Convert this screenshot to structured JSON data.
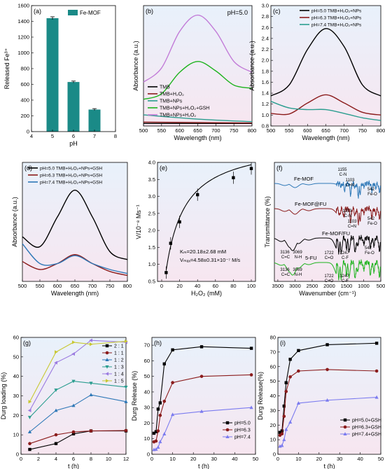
{
  "colors": {
    "teal": "#1a8a87",
    "black": "#000000",
    "dark_red": "#8b1c1c",
    "green_mid": "#2a9d8f",
    "blue": "#2e78b7",
    "green": "#1db31d",
    "violet": "#c27cd8",
    "bg_top": "#e8f1fb",
    "bg_bottom": "#f7e6f0"
  },
  "chart_data": [
    {
      "panel": "(a)",
      "type": "bar",
      "legend": [
        "Fe-MOF"
      ],
      "categories": [
        5,
        6,
        7
      ],
      "values": [
        1440,
        630,
        280
      ],
      "errors": [
        18,
        12,
        12
      ],
      "xlabel": "pH",
      "ylabel": "Released Fe³⁺",
      "xlim": [
        4,
        8
      ],
      "ylim": [
        0,
        1600
      ],
      "xticks": [
        "4",
        "5",
        "6",
        "7",
        "8"
      ],
      "yticks": [
        "0",
        "200",
        "400",
        "600",
        "800",
        "1000",
        "1200",
        "1400",
        "1600"
      ]
    },
    {
      "panel": "(b)",
      "type": "line",
      "annotation": "pH=5.0",
      "xlabel": "Wavelength (nm)",
      "ylabel": "Absorbance (a.u.)",
      "xlim": [
        500,
        800
      ],
      "xticks": [
        "500",
        "550",
        "600",
        "650",
        "700",
        "750",
        "800"
      ],
      "series": [
        {
          "name": "TMB",
          "color": "#000000",
          "x": [
            500,
            650,
            800
          ],
          "y": [
            0.06,
            0.06,
            0.06
          ]
        },
        {
          "name": "TMB+H₂O₂",
          "color": "#8b1c1c",
          "x": [
            500,
            650,
            800
          ],
          "y": [
            0.09,
            0.08,
            0.07
          ]
        },
        {
          "name": "TMB+NPs",
          "color": "#2a9d8f",
          "x": [
            500,
            650,
            800
          ],
          "y": [
            0.26,
            0.16,
            0.1
          ]
        },
        {
          "name": "TMB+NPs+H₂O₂+GSH",
          "color": "#1db31d",
          "x": [
            500,
            550,
            600,
            650,
            700,
            750,
            800
          ],
          "y": [
            0.62,
            0.75,
            1.25,
            1.5,
            1.28,
            0.95,
            0.88
          ]
        },
        {
          "name": "TMB+NPs+H₂O₂",
          "color": "#c27cd8",
          "x": [
            500,
            550,
            600,
            650,
            700,
            750,
            800
          ],
          "y": [
            1.02,
            1.35,
            2.2,
            2.58,
            2.2,
            1.5,
            1.25
          ]
        }
      ]
    },
    {
      "panel": "(c)",
      "type": "line",
      "xlabel": "Wavelength (nm)",
      "ylabel": "Absorbance (a.u.)",
      "xlim": [
        500,
        800
      ],
      "ylim": [
        0.8,
        3.0
      ],
      "xticks": [
        "500",
        "550",
        "600",
        "650",
        "700",
        "750",
        "800"
      ],
      "yticks": [
        "0.8",
        "1.0",
        "1.2",
        "1.4",
        "1.6",
        "1.8",
        "2.0",
        "2.2",
        "2.4",
        "2.6",
        "2.8",
        "3.0"
      ],
      "series": [
        {
          "name": "pH=5.0 TMB+H₂O₂+NPs",
          "color": "#000000",
          "x": [
            500,
            550,
            600,
            650,
            700,
            750,
            800
          ],
          "y": [
            1.35,
            1.55,
            2.2,
            2.58,
            2.25,
            1.55,
            1.35
          ]
        },
        {
          "name": "pH=6.3 TMB+H₂O₂+NPs",
          "color": "#8b1c1c",
          "x": [
            500,
            550,
            600,
            650,
            700,
            750,
            800
          ],
          "y": [
            1.03,
            1.02,
            1.22,
            1.37,
            1.22,
            1.05,
            1.0
          ]
        },
        {
          "name": "pH=7.4 TMB+H₂O₂+NPs",
          "color": "#2a9d8f",
          "x": [
            500,
            550,
            600,
            650,
            700,
            750,
            800
          ],
          "y": [
            1.25,
            1.13,
            1.1,
            1.1,
            1.03,
            0.95,
            0.9
          ]
        }
      ]
    },
    {
      "panel": "(d)",
      "type": "line",
      "xlabel": "Wavelength (nm)",
      "ylabel": "Absorbance (a.u.)",
      "xlim": [
        500,
        800
      ],
      "xticks": [
        "500",
        "550",
        "600",
        "650",
        "700",
        "750",
        "800"
      ],
      "series": [
        {
          "name": "pH=5.0 TMB+H₂O₂+NPs+GSH",
          "color": "#000000",
          "x": [
            500,
            550,
            600,
            650,
            700,
            750,
            800
          ],
          "y": [
            1.05,
            0.95,
            1.25,
            1.52,
            1.25,
            0.9,
            0.82
          ]
        },
        {
          "name": "pH=6.3 TMB+H₂O₂+NPs+GSH",
          "color": "#8b1c1c",
          "x": [
            500,
            550,
            600,
            650,
            700,
            750,
            800
          ],
          "y": [
            0.8,
            0.72,
            0.78,
            0.87,
            0.78,
            0.7,
            0.66
          ]
        },
        {
          "name": "pH=7.4 TMB+H₂O₂+NPs+GSH",
          "color": "#2e78b7",
          "x": [
            500,
            550,
            600,
            650,
            700,
            750,
            800
          ],
          "y": [
            0.98,
            0.78,
            0.78,
            0.86,
            0.78,
            0.72,
            0.68
          ]
        }
      ]
    },
    {
      "panel": "(e)",
      "type": "scatter",
      "xlabel": "H₂O₂ (mM)",
      "ylabel": "V/10⁻⁸ Ms⁻¹",
      "xlim": [
        0,
        100
      ],
      "ylim": [
        0.5,
        4.0
      ],
      "xticks": [
        "0",
        "20",
        "40",
        "60",
        "80",
        "100"
      ],
      "yticks": [
        "0.5",
        "1.0",
        "1.5",
        "2.0",
        "2.5",
        "3.0",
        "3.5",
        "4.0"
      ],
      "annotation_km": "Kₘ=20.18±2.68 mM",
      "annotation_vmax": "Vₘₐₓ=4.58±0.31×10⁻⁷ M/s",
      "x": [
        5,
        10,
        20,
        40,
        80,
        100
      ],
      "y": [
        0.76,
        1.62,
        2.25,
        3.05,
        3.55,
        3.82
      ]
    },
    {
      "panel": "(f)",
      "type": "line",
      "xlabel": "Wavenumber (cm⁻¹)",
      "ylabel": "Transmittance (%)",
      "xlim": [
        3600,
        500
      ],
      "xticks": [
        "3500",
        "3000",
        "2500",
        "2000",
        "1500",
        "1000",
        "500"
      ],
      "series": [
        {
          "name": "Fe-MOF",
          "color": "#2e78b7"
        },
        {
          "name": "Fe-MOF@FU",
          "color": "#8b1c1c"
        },
        {
          "name": "Fe-MOF/FU",
          "color": "#000000"
        },
        {
          "name": "5-FU",
          "color": "#1db31d"
        }
      ],
      "peak_labels": [
        "1155",
        "C-N",
        "1103",
        "C=N",
        "542",
        "Fe-O",
        "1153",
        "C-N",
        "1103",
        "C=N",
        "542",
        "Fe-O",
        "3136",
        "C=C",
        "3069",
        "N-H",
        "1722",
        "C=O",
        "1247",
        "C-F",
        "542",
        "Fe-O",
        "3136",
        "C=C",
        "3069",
        "N-H",
        "1722",
        "C=O",
        "1247",
        "C-F"
      ]
    },
    {
      "panel": "(g)",
      "type": "line",
      "xlabel": "t (h)",
      "ylabel": "Durg loading (%)",
      "xlim": [
        0,
        12
      ],
      "ylim": [
        0,
        60
      ],
      "xticks": [
        "0",
        "2",
        "4",
        "6",
        "8",
        "10",
        "12"
      ],
      "yticks": [
        "0",
        "10",
        "20",
        "30",
        "40",
        "50",
        "60"
      ],
      "x": [
        1,
        4,
        6,
        8,
        12
      ],
      "series": [
        {
          "name": "2 : 1",
          "color": "#000000",
          "values": [
            2.5,
            5.5,
            10.5,
            12,
            12
          ]
        },
        {
          "name": "1 : 1",
          "color": "#8b1c1c",
          "values": [
            5.5,
            10,
            11.5,
            12,
            12.2
          ]
        },
        {
          "name": "1 : 2",
          "color": "#2e78b7",
          "values": [
            11.5,
            22.5,
            25,
            30.5,
            27
          ]
        },
        {
          "name": "1 : 3",
          "color": "#2a9d8f",
          "values": [
            19,
            33,
            37.5,
            36.5,
            34.5
          ]
        },
        {
          "name": "1 : 4",
          "color": "#9b7be0",
          "values": [
            22.5,
            47,
            51.5,
            58.5,
            57.5
          ]
        },
        {
          "name": "1 : 5",
          "color": "#c8c832",
          "values": [
            27,
            52.5,
            57.5,
            56.5,
            58
          ]
        }
      ]
    },
    {
      "panel": "(h)",
      "type": "line",
      "xlabel": "t (h)",
      "ylabel": "Durg Release (%)",
      "xlim": [
        0,
        50
      ],
      "ylim": [
        0,
        75
      ],
      "xticks": [
        "0",
        "10",
        "20",
        "30",
        "40",
        "50"
      ],
      "yticks": [
        "0",
        "10",
        "20",
        "30",
        "40",
        "50",
        "60",
        "70"
      ],
      "x": [
        1,
        2,
        3,
        4,
        6,
        10,
        24,
        48
      ],
      "series": [
        {
          "name": "pH=5.0",
          "color": "#000000",
          "values": [
            13.5,
            14.5,
            29,
            33,
            58,
            67,
            69,
            68
          ]
        },
        {
          "name": "pH=6.3",
          "color": "#8b1c1c",
          "values": [
            8,
            8.5,
            15,
            25,
            34,
            46,
            50,
            51
          ]
        },
        {
          "name": "pH=7.4",
          "color": "#7b7bef",
          "values": [
            3,
            3.2,
            4.5,
            8,
            13,
            25.5,
            27.5,
            30
          ]
        }
      ]
    },
    {
      "panel": "(i)",
      "type": "line",
      "xlabel": "t (h)",
      "ylabel": "Durg Release(%)",
      "xlim": [
        0,
        50
      ],
      "ylim": [
        0,
        80
      ],
      "xticks": [
        "0",
        "10",
        "20",
        "30",
        "40",
        "50"
      ],
      "yticks": [
        "0",
        "10",
        "20",
        "30",
        "40",
        "50",
        "60",
        "70",
        "80"
      ],
      "x": [
        1,
        2,
        3,
        4,
        6,
        10,
        24,
        48
      ],
      "series": [
        {
          "name": "pH=5.0+GSH",
          "color": "#000000",
          "values": [
            15,
            16,
            33,
            49,
            65,
            71,
            75,
            76
          ]
        },
        {
          "name": "pH=6.3+GSH",
          "color": "#8b1c1c",
          "values": [
            13,
            14,
            26,
            43,
            53,
            57,
            58,
            57
          ]
        },
        {
          "name": "pH=7.4+GSH",
          "color": "#7b7bef",
          "values": [
            5.5,
            6,
            10,
            17,
            22,
            35,
            37,
            39
          ]
        }
      ]
    }
  ]
}
